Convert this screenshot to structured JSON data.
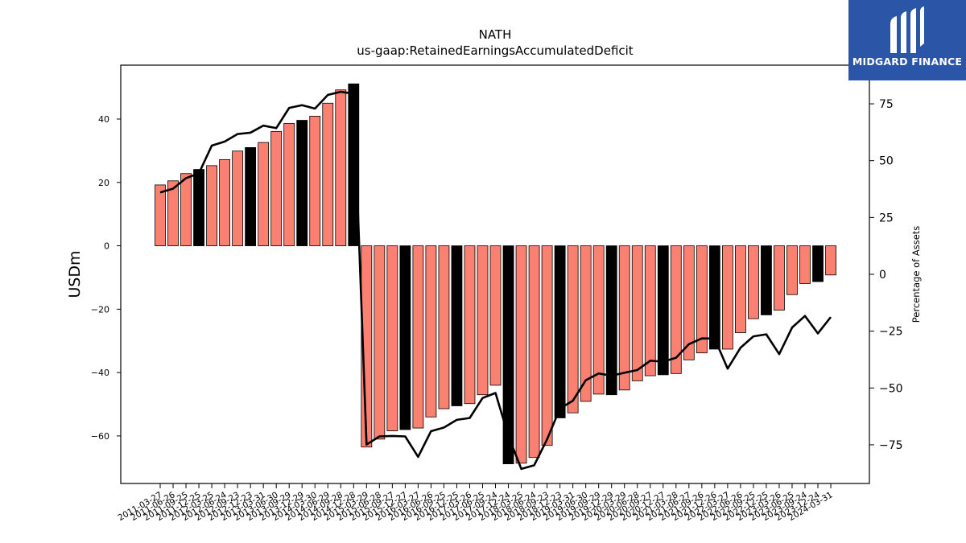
{
  "brand": {
    "name": "MIDGARD FINANCE",
    "color": "#2b56a8"
  },
  "chart_data": {
    "type": "bar",
    "title": "NATH",
    "subtitle": "us-gaap:RetainedEarningsAccumulatedDeficit",
    "ylabel": "USDm",
    "y2label": "Percentage of Assets",
    "ylim": [
      -75,
      57
    ],
    "y2lim": [
      -92,
      92
    ],
    "yticks": [
      -60,
      -40,
      -20,
      0,
      20,
      40
    ],
    "y2ticks": [
      -75,
      -50,
      -25,
      0,
      25,
      50,
      75
    ],
    "bar_color": "#fa8072",
    "highlight_color": "#000000",
    "line_color": "#000000",
    "categories": [
      "2011-03-27",
      "2011-06-26",
      "2011-09-25",
      "2011-12-25",
      "2012-03-25",
      "2012-06-24",
      "2012-09-23",
      "2012-12-23",
      "2013-03-31",
      "2013-06-30",
      "2013-09-29",
      "2013-12-29",
      "2014-03-30",
      "2014-06-29",
      "2014-09-28",
      "2014-12-28",
      "2015-03-29",
      "2015-06-28",
      "2015-09-27",
      "2015-12-27",
      "2016-03-27",
      "2016-06-26",
      "2016-09-25",
      "2016-12-25",
      "2017-03-26",
      "2017-06-25",
      "2017-09-24",
      "2017-12-24",
      "2018-03-25",
      "2018-06-24",
      "2018-09-23",
      "2018-12-23",
      "2019-03-31",
      "2019-06-30",
      "2019-09-29",
      "2019-12-29",
      "2020-03-29",
      "2020-06-28",
      "2020-09-27",
      "2020-12-27",
      "2021-03-28",
      "2021-06-27",
      "2021-09-26",
      "2021-12-26",
      "2022-03-27",
      "2022-06-26",
      "2022-09-25",
      "2022-12-25",
      "2023-03-26",
      "2023-06-25",
      "2023-09-24",
      "2023-12-24",
      "2024-03-31"
    ],
    "tick_labels": [
      "2011-03-27",
      "2011-06-26",
      "2011-09-25",
      "2011-12-25",
      "2012-03-25",
      "2012-06-24",
      "2012-09-23",
      "2012-12-23",
      "2013-03-31",
      "2013-06-30",
      "2013-09-29",
      "2013-12-29",
      "2014-03-30",
      "2014-06-29",
      "2014-09-28",
      "2014-12-28",
      "2015-03-29",
      "2015-06-28",
      "2015-09-27",
      "2015-12-27",
      "2016-03-27",
      "2016-06-26",
      "2016-09-25",
      "2016-12-25",
      "2017-03-26",
      "2017-06-25",
      "2017-09-24",
      "2017-12-24",
      "2018-03-25",
      "2018-06-24",
      "2018-09-23",
      "2018-12-23",
      "2019-03-31",
      "2019-06-30",
      "2019-09-29",
      "2019-12-29",
      "2020-03-29",
      "2020-06-28",
      "2020-09-27",
      "2020-12-27",
      "2021-03-28",
      "2021-06-27",
      "2021-09-26",
      "2021-12-26",
      "2022-03-27",
      "2022-06-26",
      "2022-09-25",
      "2022-12-25",
      "2023-03-26",
      "2023-06-25",
      "2023-09-24",
      "2023-12-24",
      "2024-03-31"
    ],
    "highlight_flags": [
      0,
      0,
      0,
      1,
      0,
      0,
      0,
      1,
      0,
      0,
      0,
      1,
      0,
      0,
      0,
      1,
      0,
      0,
      0,
      1,
      0,
      0,
      0,
      1,
      0,
      0,
      0,
      1,
      0,
      0,
      0,
      1,
      0,
      0,
      0,
      1,
      0,
      0,
      0,
      1,
      0,
      0,
      0,
      1,
      0,
      0,
      0,
      1,
      0,
      0,
      0,
      1,
      0
    ],
    "series": [
      {
        "type": "bar",
        "axis": "left",
        "values": [
          19.2,
          20.5,
          22.8,
          24.1,
          25.3,
          27.2,
          29.9,
          31.0,
          32.6,
          36.1,
          38.6,
          39.6,
          40.9,
          45.0,
          49.2,
          51.1,
          -63.5,
          -61.0,
          -58.4,
          -58.0,
          -57.5,
          -54.0,
          -51.4,
          -50.5,
          -49.8,
          -47.0,
          -44.0,
          -68.8,
          -68.6,
          -66.8,
          -63.0,
          -54.3,
          -52.7,
          -49.1,
          -46.8,
          -47.0,
          -45.5,
          -42.6,
          -41.0,
          -40.7,
          -40.3,
          -36.0,
          -33.8,
          -32.6,
          -32.6,
          -27.4,
          -23.0,
          -21.8,
          -20.3,
          -15.4,
          -11.9,
          -11.3,
          -9.2
        ]
      },
      {
        "type": "line",
        "axis": "right",
        "values": [
          36.0,
          37.7,
          42.3,
          44.4,
          56.6,
          58.4,
          61.7,
          62.3,
          65.4,
          64.3,
          73.2,
          74.4,
          72.9,
          78.9,
          80.3,
          79.4,
          -74.9,
          -71.3,
          -71.1,
          -71.3,
          -80.3,
          -69.0,
          -67.4,
          -64.0,
          -63.2,
          -54.4,
          -52.2,
          -71.1,
          -85.6,
          -84.0,
          -72.6,
          -59.0,
          -55.6,
          -46.6,
          -43.6,
          -44.6,
          -43.3,
          -42.1,
          -38.0,
          -38.4,
          -36.7,
          -30.7,
          -28.2,
          -28.3,
          -41.5,
          -32.3,
          -27.3,
          -26.4,
          -35.1,
          -23.4,
          -18.3,
          -26.0,
          -18.8
        ]
      }
    ]
  }
}
